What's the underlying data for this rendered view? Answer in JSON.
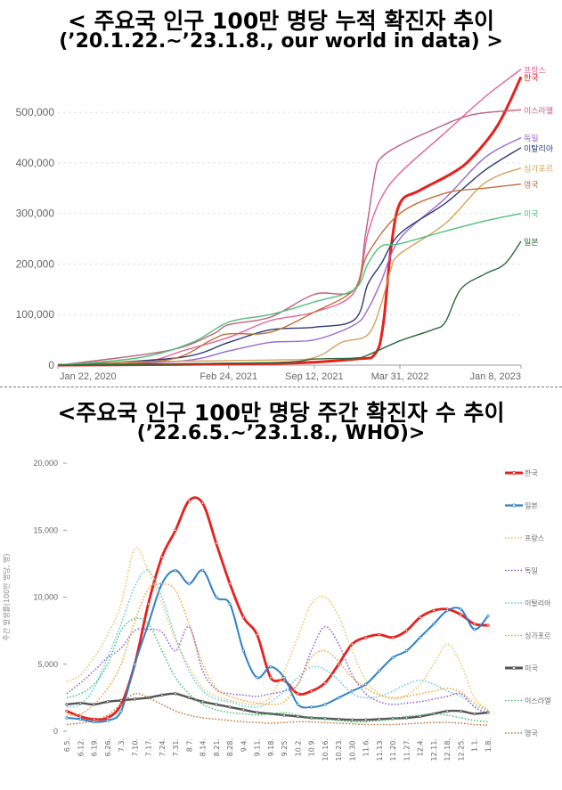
{
  "titles": {
    "top_line1": "< 주요국 인구 100만 명당 누적 확진자 추이",
    "top_line2": "(’20.1.22.~’23.1.8., our world in data) >",
    "bottom_line1": "<주요국 인구 100만 명당 주간 확진자 수 추이",
    "bottom_line2": "(’22.6.5.~’23.1.8., WHO)>"
  },
  "chart_data": [
    {
      "type": "line",
      "title": "< 주요국 인구 100만 명당 누적 확진자 추이",
      "subtitle": "(’20.1.22.~’23.1.8., our world in data) >",
      "x_tick_labels": [
        "Jan 22, 2020",
        "Feb 24, 2021",
        "Sep 12, 2021",
        "Mar 31, 2022",
        "Jan 8, 2023"
      ],
      "x_tick_dates": [
        "2020-01-22",
        "2021-02-24",
        "2021-09-12",
        "2022-03-31",
        "2023-01-08"
      ],
      "y_ticks": [
        0,
        100000,
        200000,
        300000,
        400000,
        500000
      ],
      "y_tick_labels": [
        "0",
        "100,000",
        "200,000",
        "300,000",
        "400,000",
        "500,000"
      ],
      "ylim": [
        0,
        590000
      ],
      "grid": true,
      "legend": "end-of-line labels",
      "series": [
        {
          "name": "프랑스",
          "color": "#e8609a",
          "x": [
            "2020-01-22",
            "2020-08-01",
            "2020-11-15",
            "2021-02-24",
            "2021-06-01",
            "2021-09-12",
            "2021-12-15",
            "2022-01-15",
            "2022-02-15",
            "2022-03-31",
            "2022-07-15",
            "2022-10-15",
            "2023-01-08"
          ],
          "y": [
            0,
            5000,
            30000,
            55000,
            88000,
            105000,
            145000,
            260000,
            330000,
            380000,
            460000,
            530000,
            585000
          ]
        },
        {
          "name": "한국",
          "color": "#e8201c",
          "x": [
            "2020-01-22",
            "2021-06-01",
            "2021-12-15",
            "2022-02-01",
            "2022-02-20",
            "2022-03-10",
            "2022-03-31",
            "2022-05-15",
            "2022-08-01",
            "2022-09-15",
            "2022-11-15",
            "2023-01-08"
          ],
          "y": [
            0,
            3000,
            12000,
            22000,
            80000,
            230000,
            320000,
            345000,
            380000,
            410000,
            475000,
            570000
          ]
        },
        {
          "name": "이스라엘",
          "color": "#c0607a",
          "x": [
            "2020-01-22",
            "2020-10-01",
            "2021-01-15",
            "2021-02-24",
            "2021-06-01",
            "2021-09-12",
            "2021-12-15",
            "2022-01-10",
            "2022-02-01",
            "2022-02-15",
            "2022-03-31",
            "2022-06-15",
            "2022-09-15",
            "2023-01-08"
          ],
          "y": [
            0,
            28000,
            60000,
            80000,
            95000,
            140000,
            150000,
            260000,
            380000,
            410000,
            435000,
            465000,
            495000,
            505000
          ]
        },
        {
          "name": "독일",
          "color": "#9b6ad0",
          "x": [
            "2020-01-22",
            "2020-11-01",
            "2021-02-24",
            "2021-06-01",
            "2021-09-12",
            "2021-12-15",
            "2022-01-15",
            "2022-02-15",
            "2022-03-31",
            "2022-07-15",
            "2022-10-15",
            "2023-01-08"
          ],
          "y": [
            0,
            8000,
            28000,
            45000,
            50000,
            80000,
            110000,
            165000,
            250000,
            330000,
            410000,
            450000
          ]
        },
        {
          "name": "이탈리아",
          "color": "#2b3a78",
          "x": [
            "2020-01-22",
            "2020-11-01",
            "2021-02-24",
            "2021-06-01",
            "2021-09-12",
            "2021-12-15",
            "2022-01-15",
            "2022-02-15",
            "2022-03-31",
            "2022-07-15",
            "2022-10-15",
            "2023-01-08"
          ],
          "y": [
            0,
            15000,
            45000,
            70000,
            75000,
            90000,
            160000,
            200000,
            260000,
            320000,
            385000,
            430000
          ]
        },
        {
          "name": "싱가포르",
          "color": "#d4a25a",
          "x": [
            "2020-01-22",
            "2020-06-01",
            "2021-06-01",
            "2021-09-12",
            "2021-11-15",
            "2022-01-15",
            "2022-02-15",
            "2022-03-10",
            "2022-03-31",
            "2022-07-15",
            "2022-10-15",
            "2023-01-08"
          ],
          "y": [
            0,
            6000,
            10000,
            15000,
            45000,
            60000,
            120000,
            190000,
            220000,
            280000,
            360000,
            390000
          ]
        },
        {
          "name": "영국",
          "color": "#c0703a",
          "x": [
            "2020-01-22",
            "2020-10-01",
            "2021-01-15",
            "2021-02-24",
            "2021-06-01",
            "2021-09-12",
            "2021-12-15",
            "2022-01-15",
            "2022-03-31",
            "2022-07-15",
            "2022-10-15",
            "2023-01-08"
          ],
          "y": [
            0,
            10000,
            50000,
            62000,
            65000,
            105000,
            150000,
            220000,
            300000,
            340000,
            350000,
            358000
          ]
        },
        {
          "name": "미국",
          "color": "#4fc07a",
          "x": [
            "2020-01-22",
            "2020-08-01",
            "2020-12-01",
            "2021-02-24",
            "2021-06-01",
            "2021-09-12",
            "2021-12-15",
            "2022-01-15",
            "2022-02-15",
            "2022-03-31",
            "2022-07-15",
            "2022-10-15",
            "2023-01-08"
          ],
          "y": [
            0,
            15000,
            45000,
            85000,
            100000,
            125000,
            150000,
            200000,
            235000,
            240000,
            265000,
            285000,
            300000
          ]
        },
        {
          "name": "일본",
          "color": "#2a6a3a",
          "x": [
            "2020-01-22",
            "2021-06-01",
            "2021-09-12",
            "2021-12-15",
            "2022-01-15",
            "2022-03-31",
            "2022-06-15",
            "2022-07-15",
            "2022-08-20",
            "2022-10-15",
            "2022-12-01",
            "2023-01-08"
          ],
          "y": [
            0,
            5000,
            12000,
            14000,
            20000,
            48000,
            70000,
            85000,
            150000,
            180000,
            200000,
            245000
          ]
        }
      ]
    },
    {
      "type": "line",
      "title": "<주요국 인구 100만 명당 주간 확진자 수 추이",
      "subtitle": "(’22.6.5.~’23.1.8., WHO)>",
      "ylabel": "주간 발생률(100만 명당, 명)",
      "categories": [
        "6.5.",
        "6.12.",
        "6.19.",
        "6.26.",
        "7.3.",
        "7.10.",
        "7.17.",
        "7.24.",
        "7.31.",
        "8.7.",
        "8.14.",
        "8.21.",
        "8.28.",
        "9.4.",
        "9.11.",
        "9.18.",
        "9.25.",
        "10.2.",
        "10.9.",
        "10.16.",
        "10.23.",
        "10.30.",
        "11.6.",
        "11.13.",
        "11.20.",
        "11.27.",
        "12.4.",
        "12.11.",
        "12.18.",
        "12.25.",
        "1.1.",
        "1.8."
      ],
      "y_ticks": [
        0,
        5000,
        10000,
        15000,
        20000
      ],
      "y_tick_labels": [
        "0",
        "5,000",
        "10,000",
        "15,000",
        "20,000"
      ],
      "ylim": [
        0,
        20000
      ],
      "grid": false,
      "legend": "right",
      "series": [
        {
          "name": "한국",
          "color": "#e8201c",
          "style": "solid-bold",
          "values": [
            1500,
            1100,
            900,
            1000,
            2000,
            5000,
            9500,
            13000,
            15000,
            17200,
            17000,
            14000,
            11000,
            8500,
            7200,
            4000,
            3800,
            2800,
            3000,
            3600,
            5000,
            6500,
            7000,
            7200,
            7000,
            7500,
            8500,
            9000,
            9100,
            8700,
            8000,
            7900
          ]
        },
        {
          "name": "일본",
          "color": "#2f80c8",
          "style": "solid",
          "values": [
            1000,
            900,
            700,
            800,
            1500,
            5000,
            8000,
            11000,
            12000,
            11000,
            12000,
            10000,
            9500,
            6000,
            4000,
            4800,
            4000,
            2000,
            1800,
            2000,
            2500,
            3000,
            3500,
            4500,
            5500,
            6000,
            7000,
            8000,
            9000,
            9100,
            7600,
            8600
          ]
        },
        {
          "name": "프랑스",
          "color": "#f2c060",
          "style": "dotted",
          "values": [
            3700,
            4200,
            5500,
            7200,
            9500,
            13600,
            12000,
            9500,
            6800,
            4800,
            3200,
            2600,
            2300,
            2100,
            2000,
            2600,
            4500,
            7000,
            9500,
            10000,
            8600,
            6000,
            3800,
            2800,
            2400,
            2700,
            3500,
            5000,
            6500,
            5000,
            2500,
            1600
          ]
        },
        {
          "name": "독일",
          "color": "#8a5ad0",
          "style": "dotted",
          "values": [
            2800,
            3600,
            4500,
            5500,
            6200,
            7500,
            7600,
            7400,
            6000,
            7800,
            4500,
            3100,
            2800,
            2700,
            2600,
            2800,
            3000,
            3500,
            6000,
            7800,
            6500,
            4200,
            2800,
            2200,
            2000,
            2100,
            2200,
            2400,
            2600,
            2800,
            1800,
            1300
          ]
        },
        {
          "name": "이탈리아",
          "color": "#58c8e0",
          "style": "dotted",
          "values": [
            1800,
            2000,
            3200,
            5500,
            8000,
            10800,
            12000,
            10000,
            7000,
            4500,
            3000,
            2400,
            2200,
            1900,
            1800,
            2200,
            3000,
            4000,
            4800,
            4600,
            3800,
            2800,
            2500,
            2600,
            3000,
            3500,
            3800,
            3500,
            3000,
            2600,
            1900,
            1500
          ]
        },
        {
          "name": "싱가포르",
          "color": "#f0a030",
          "style": "dotted",
          "values": [
            1200,
            1300,
            2000,
            3200,
            5000,
            8200,
            10600,
            11000,
            10500,
            8000,
            5000,
            3200,
            2600,
            2300,
            2100,
            2000,
            2200,
            3500,
            5500,
            6000,
            5200,
            4000,
            3200,
            2700,
            2500,
            2600,
            2800,
            3000,
            3200,
            2900,
            2100,
            1600
          ]
        },
        {
          "name": "미국",
          "color": "#555555",
          "style": "solid-bold",
          "values": [
            2000,
            2100,
            2000,
            2200,
            2300,
            2400,
            2500,
            2700,
            2800,
            2500,
            2200,
            2000,
            1800,
            1600,
            1400,
            1300,
            1200,
            1100,
            1000,
            950,
            900,
            850,
            850,
            900,
            950,
            1000,
            1100,
            1300,
            1500,
            1500,
            1300,
            1400
          ]
        },
        {
          "name": "이스라엘",
          "color": "#40c070",
          "style": "dotted",
          "values": [
            2500,
            2800,
            3500,
            5000,
            7500,
            8400,
            8000,
            6000,
            4000,
            2800,
            2000,
            1600,
            1400,
            1300,
            1200,
            1300,
            1400,
            1200,
            1000,
            900,
            800,
            700,
            700,
            800,
            900,
            1100,
            1200,
            1300,
            1200,
            1000,
            800,
            700
          ]
        },
        {
          "name": "영국",
          "color": "#c07030",
          "style": "dotted",
          "values": [
            500,
            600,
            800,
            1200,
            2000,
            2800,
            2500,
            2000,
            1500,
            1200,
            1000,
            900,
            800,
            700,
            650,
            600,
            650,
            700,
            700,
            650,
            600,
            550,
            500,
            500,
            500,
            550,
            600,
            650,
            650,
            600,
            500,
            450
          ]
        }
      ]
    }
  ]
}
